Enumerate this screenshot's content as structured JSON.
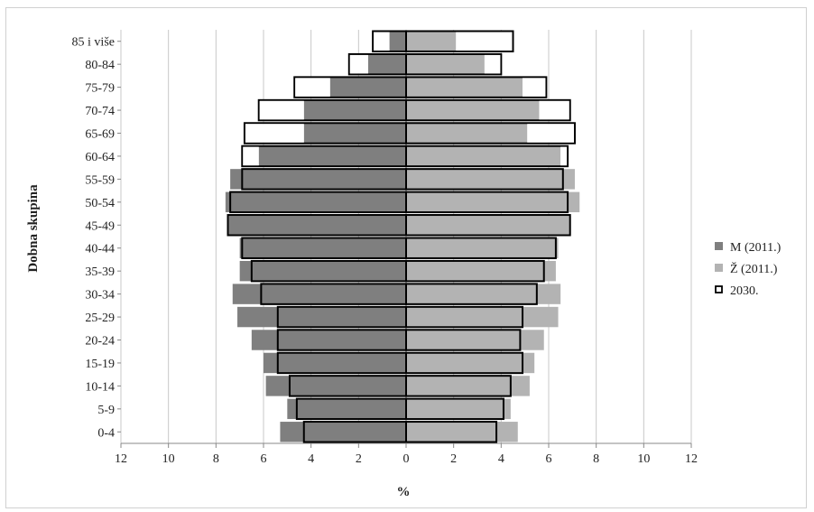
{
  "chart_data": {
    "type": "bar",
    "subtype": "population-pyramid",
    "title": "",
    "xlabel": "%",
    "ylabel": "Dobna skupina",
    "xlim": [
      -12,
      12
    ],
    "x_ticks": [
      12,
      10,
      8,
      6,
      4,
      2,
      0,
      2,
      4,
      6,
      8,
      10,
      12
    ],
    "grid": "vertical",
    "legend_position": "right",
    "categories": [
      "0-4",
      "5-9",
      "10-14",
      "15-19",
      "20-24",
      "25-29",
      "30-34",
      "35-39",
      "40-44",
      "45-49",
      "50-54",
      "55-59",
      "60-64",
      "65-69",
      "70-74",
      "75-79",
      "80-84",
      "85 i više"
    ],
    "series": [
      {
        "name": "M (2011.)",
        "side": "left",
        "color": "#7f7f7f",
        "values": [
          5.3,
          5.0,
          5.9,
          6.0,
          6.5,
          7.1,
          7.3,
          7.0,
          7.0,
          7.5,
          7.6,
          7.4,
          6.2,
          4.3,
          4.3,
          3.2,
          1.6,
          0.7
        ]
      },
      {
        "name": "Ž (2011.)",
        "side": "right",
        "color": "#b3b3b3",
        "values": [
          4.7,
          4.4,
          5.2,
          5.4,
          5.8,
          6.4,
          6.5,
          6.3,
          6.4,
          6.9,
          7.3,
          7.1,
          6.5,
          5.1,
          5.6,
          4.9,
          3.3,
          2.1
        ]
      },
      {
        "name": "2030.",
        "color": "#ffffff",
        "stroke": "#000000",
        "male": [
          4.3,
          4.6,
          4.9,
          5.4,
          5.4,
          5.4,
          6.1,
          6.5,
          6.9,
          7.5,
          7.4,
          6.9,
          6.9,
          6.8,
          6.2,
          4.7,
          2.4,
          1.4
        ],
        "female": [
          3.8,
          4.1,
          4.4,
          4.9,
          4.8,
          4.9,
          5.5,
          5.8,
          6.3,
          6.9,
          6.8,
          6.6,
          6.8,
          7.1,
          6.9,
          5.9,
          4.0,
          4.5
        ]
      }
    ]
  }
}
